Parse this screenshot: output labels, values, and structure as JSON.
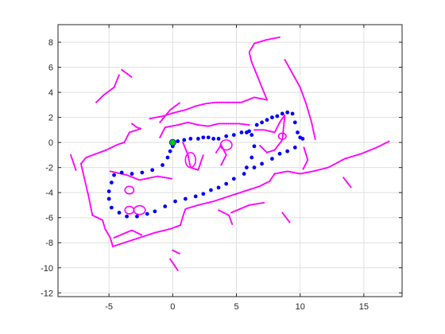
{
  "chart_data": {
    "type": "scatter",
    "title": "",
    "xlabel": "",
    "ylabel": "",
    "xlim": [
      -9,
      18
    ],
    "ylim": [
      -12.3,
      9.4
    ],
    "x_ticks": [
      -5,
      0,
      5,
      10,
      15
    ],
    "x_tick_labels": [
      "-5",
      "0",
      "5",
      "10",
      "15"
    ],
    "y_ticks": [
      8,
      6,
      4,
      2,
      0,
      -2,
      -4,
      -6,
      -8,
      -10,
      -12
    ],
    "y_tick_labels": [
      "8",
      "6",
      "4",
      "2",
      "0",
      "-2",
      "-4",
      "-6",
      "-8",
      "-10",
      "-12"
    ],
    "grid": true,
    "series": [
      {
        "role": "map-scan",
        "color": "#ff00ff",
        "marker": "dot",
        "segments": [
          [
            [
              -7.2,
              -1.7
            ],
            [
              -6.8,
              -1.2
            ],
            [
              -6.0,
              -0.9
            ],
            [
              -5.2,
              -0.6
            ],
            [
              -4.4,
              -0.2
            ],
            [
              -3.8,
              0.0
            ]
          ],
          [
            [
              -7.2,
              -1.7
            ],
            [
              -6.9,
              -3.0
            ],
            [
              -6.6,
              -4.3
            ],
            [
              -6.3,
              -5.8
            ]
          ],
          [
            [
              -6.3,
              -5.8
            ],
            [
              -5.5,
              -6.2
            ],
            [
              -5.3,
              -6.9
            ],
            [
              -4.9,
              -7.6
            ],
            [
              -4.7,
              -8.3
            ]
          ],
          [
            [
              -4.7,
              -8.3
            ],
            [
              -3.8,
              -8.0
            ],
            [
              -2.6,
              -7.6
            ],
            [
              -1.4,
              -7.2
            ],
            [
              -0.2,
              -6.9
            ],
            [
              0.6,
              -6.6
            ]
          ],
          [
            [
              0.6,
              -6.6
            ],
            [
              0.8,
              -5.9
            ],
            [
              1.0,
              -5.3
            ],
            [
              2.0,
              -5.0
            ],
            [
              3.2,
              -4.7
            ],
            [
              4.4,
              -4.3
            ],
            [
              5.6,
              -3.9
            ],
            [
              6.8,
              -3.5
            ],
            [
              7.6,
              -3.1
            ],
            [
              8.0,
              -2.5
            ]
          ],
          [
            [
              8.0,
              -2.5
            ],
            [
              9.0,
              -2.3
            ],
            [
              10.0,
              -2.5
            ],
            [
              11.0,
              -2.3
            ],
            [
              12.2,
              -2.0
            ],
            [
              13.5,
              -1.3
            ],
            [
              14.8,
              -0.9
            ],
            [
              16.0,
              -0.4
            ],
            [
              17.0,
              0.1
            ]
          ],
          [
            [
              -3.8,
              0.0
            ],
            [
              -3.4,
              0.8
            ],
            [
              -2.8,
              1.0
            ],
            [
              -2.5,
              1.1
            ]
          ],
          [
            [
              -1.8,
              1.9
            ],
            [
              -0.8,
              2.1
            ],
            [
              0.2,
              2.4
            ],
            [
              1.0,
              2.6
            ],
            [
              1.8,
              2.9
            ],
            [
              2.6,
              3.1
            ],
            [
              3.4,
              3.2
            ],
            [
              4.4,
              3.2
            ],
            [
              5.4,
              3.2
            ],
            [
              6.4,
              3.6
            ],
            [
              7.4,
              3.4
            ]
          ],
          [
            [
              7.4,
              3.4
            ],
            [
              7.0,
              4.4
            ],
            [
              6.6,
              5.4
            ],
            [
              6.2,
              6.4
            ],
            [
              6.0,
              7.2
            ],
            [
              6.4,
              7.9
            ],
            [
              7.4,
              8.2
            ],
            [
              8.4,
              8.4
            ]
          ],
          [
            [
              8.8,
              6.6
            ],
            [
              9.4,
              5.5
            ],
            [
              10.0,
              4.4
            ],
            [
              10.5,
              3.0
            ],
            [
              10.9,
              1.6
            ],
            [
              11.2,
              0.2
            ]
          ],
          [
            [
              10.3,
              -0.4
            ],
            [
              10.6,
              -1.4
            ],
            [
              10.2,
              -2.2
            ]
          ],
          [
            [
              -1.0,
              0.4
            ],
            [
              -0.6,
              1.2
            ],
            [
              0.4,
              1.4
            ],
            [
              1.2,
              1.6
            ],
            [
              2.0,
              1.4
            ],
            [
              2.8,
              1.3
            ],
            [
              3.6,
              1.5
            ],
            [
              4.4,
              1.5
            ],
            [
              5.2,
              1.5
            ],
            [
              6.0,
              1.4
            ]
          ],
          [
            [
              0.8,
              0.0
            ],
            [
              1.2,
              -1.0
            ],
            [
              1.4,
              -2.0
            ],
            [
              2.0,
              -2.2
            ],
            [
              2.4,
              -1.0
            ]
          ],
          [
            [
              3.4,
              -0.8
            ],
            [
              3.8,
              -0.2
            ],
            [
              4.2,
              -1.0
            ],
            [
              3.8,
              -1.8
            ]
          ],
          [
            [
              6.4,
              1.0
            ],
            [
              7.2,
              1.0
            ],
            [
              8.0,
              0.8
            ],
            [
              8.4,
              1.6
            ],
            [
              8.8,
              2.2
            ],
            [
              8.6,
              0.2
            ],
            [
              8.0,
              -0.6
            ],
            [
              7.4,
              -0.8
            ],
            [
              6.8,
              -0.2
            ]
          ],
          [
            [
              -4.9,
              -2.3
            ],
            [
              -3.6,
              -2.6
            ],
            [
              -2.6,
              -3.0
            ],
            [
              -1.2,
              -2.7
            ],
            [
              0.0,
              -2.9
            ]
          ],
          [
            [
              -4.6,
              -7.6
            ],
            [
              -3.2,
              -7.0
            ],
            [
              -2.4,
              -7.4
            ]
          ],
          [
            [
              3.6,
              -5.4
            ],
            [
              4.4,
              -5.8
            ],
            [
              4.7,
              -6.6
            ]
          ],
          [
            [
              -6.0,
              3.2
            ],
            [
              -5.4,
              3.8
            ],
            [
              -4.6,
              4.4
            ],
            [
              -4.2,
              5.4
            ]
          ],
          [
            [
              -3.2,
              1.5
            ],
            [
              -2.8,
              1.2
            ],
            [
              -2.5,
              1.1
            ]
          ],
          [
            [
              -0.2,
              -9.3
            ],
            [
              0.4,
              -10.2
            ]
          ],
          [
            [
              4.6,
              -5.6
            ],
            [
              6.0,
              -5.0
            ],
            [
              7.2,
              -4.8
            ]
          ],
          [
            [
              8.6,
              -5.6
            ],
            [
              9.2,
              -6.4
            ]
          ],
          [
            [
              13.4,
              -2.8
            ],
            [
              14.0,
              -3.6
            ]
          ],
          [
            [
              -8.0,
              -1.0
            ],
            [
              -7.6,
              -2.2
            ]
          ],
          [
            [
              -1.0,
              1.6
            ],
            [
              -0.2,
              2.6
            ],
            [
              0.6,
              3.2
            ]
          ],
          [
            [
              -4.0,
              5.8
            ],
            [
              -3.2,
              5.2
            ]
          ],
          [
            [
              0.0,
              -8.6
            ],
            [
              0.6,
              -8.9
            ]
          ]
        ],
        "loops": [
          {
            "center": [
              -3.4,
              -3.8
            ],
            "rx": 0.35,
            "ry": 0.3
          },
          {
            "center": [
              -2.6,
              -5.4
            ],
            "rx": 0.45,
            "ry": 0.35
          },
          {
            "center": [
              -3.4,
              -5.4
            ],
            "rx": 0.35,
            "ry": 0.3
          },
          {
            "center": [
              1.4,
              -1.4
            ],
            "rx": 0.4,
            "ry": 0.6
          },
          {
            "center": [
              4.2,
              -0.2
            ],
            "rx": 0.45,
            "ry": 0.4
          },
          {
            "center": [
              8.6,
              0.5
            ],
            "rx": 0.3,
            "ry": 0.25
          }
        ]
      },
      {
        "role": "trajectory",
        "color": "#0000ff",
        "marker": "filled-circle",
        "points": [
          [
            0.4,
            0.1
          ],
          [
            0.9,
            0.2
          ],
          [
            1.4,
            0.3
          ],
          [
            2.0,
            0.3
          ],
          [
            2.4,
            0.4
          ],
          [
            2.8,
            0.4
          ],
          [
            3.2,
            0.3
          ],
          [
            3.6,
            0.3
          ],
          [
            4.2,
            0.5
          ],
          [
            4.8,
            0.6
          ],
          [
            5.4,
            0.8
          ],
          [
            6.0,
            0.9
          ],
          [
            6.6,
            1.4
          ],
          [
            7.0,
            1.6
          ],
          [
            7.4,
            1.8
          ],
          [
            7.8,
            2.0
          ],
          [
            8.2,
            2.1
          ],
          [
            8.6,
            2.3
          ],
          [
            9.0,
            2.4
          ],
          [
            9.4,
            2.3
          ],
          [
            9.6,
            1.6
          ],
          [
            9.8,
            0.8
          ],
          [
            10.0,
            0.4
          ],
          [
            10.2,
            0.3
          ],
          [
            9.6,
            -0.4
          ],
          [
            9.0,
            -0.7
          ],
          [
            8.4,
            -0.9
          ],
          [
            7.8,
            -1.3
          ],
          [
            7.0,
            -1.7
          ],
          [
            6.4,
            -2.0
          ],
          [
            5.6,
            -2.5
          ],
          [
            4.8,
            -2.9
          ],
          [
            4.2,
            -3.3
          ],
          [
            3.6,
            -3.6
          ],
          [
            3.0,
            -3.8
          ],
          [
            2.4,
            -4.1
          ],
          [
            1.8,
            -4.3
          ],
          [
            1.0,
            -4.5
          ],
          [
            0.2,
            -4.7
          ],
          [
            -0.6,
            -5.1
          ],
          [
            -1.4,
            -5.5
          ],
          [
            -2.0,
            -5.7
          ],
          [
            -2.8,
            -5.9
          ],
          [
            -3.6,
            -5.9
          ],
          [
            -4.2,
            -5.6
          ],
          [
            -4.8,
            -5.2
          ],
          [
            -5.0,
            -4.5
          ],
          [
            -5.0,
            -3.9
          ],
          [
            -4.8,
            -3.2
          ],
          [
            -4.6,
            -2.6
          ],
          [
            -4.0,
            -2.4
          ],
          [
            -3.2,
            -2.5
          ],
          [
            -2.4,
            -2.4
          ],
          [
            -1.6,
            -2.2
          ],
          [
            -0.8,
            -1.8
          ],
          [
            -0.4,
            -1.2
          ],
          [
            -0.2,
            -0.7
          ],
          [
            0.0,
            -0.3
          ],
          [
            5.8,
            -2.0
          ],
          [
            6.2,
            -1.2
          ],
          [
            6.4,
            -0.3
          ],
          [
            6.2,
            0.6
          ],
          [
            5.8,
            0.8
          ]
        ]
      },
      {
        "role": "start",
        "color": "#00cc00",
        "marker": "filled-circle",
        "points": [
          [
            0.0,
            0.0
          ]
        ]
      }
    ]
  }
}
